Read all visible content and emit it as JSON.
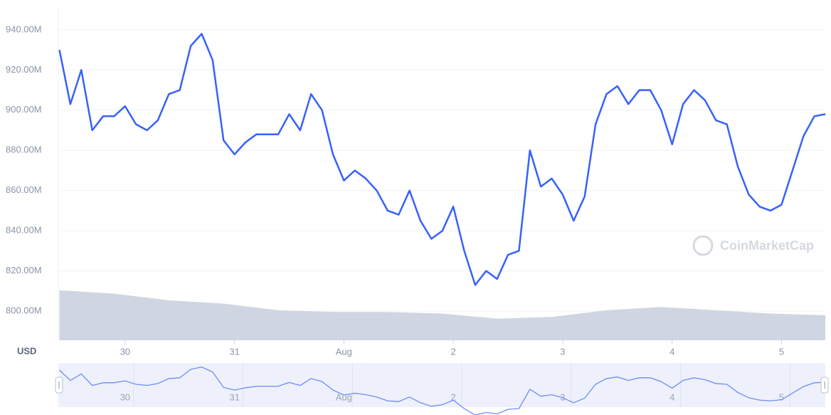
{
  "chart_data": {
    "type": "line",
    "x": [
      -0.6,
      -0.5,
      -0.4,
      -0.3,
      -0.2,
      -0.1,
      0,
      0.1,
      0.2,
      0.3,
      0.4,
      0.5,
      0.6,
      0.7,
      0.8,
      0.9,
      1,
      1.1,
      1.2,
      1.3,
      1.4,
      1.5,
      1.6,
      1.7,
      1.8,
      1.9,
      2,
      2.1,
      2.2,
      2.3,
      2.4,
      2.5,
      2.6,
      2.7,
      2.8,
      2.9,
      3,
      3.1,
      3.2,
      3.3,
      3.4,
      3.5,
      3.6,
      3.7,
      3.8,
      3.9,
      4,
      4.1,
      4.2,
      4.3,
      4.4,
      4.5,
      4.6,
      4.7,
      4.8,
      4.9,
      5,
      5.1,
      5.2,
      5.3,
      5.4,
      5.5,
      5.6,
      5.7,
      5.8,
      5.9,
      6,
      6.1,
      6.2,
      6.3,
      6.4
    ],
    "values": [
      930,
      903,
      920,
      890,
      897,
      897,
      902,
      893,
      890,
      895,
      908,
      910,
      932,
      938,
      925,
      885,
      878,
      884,
      888,
      888,
      888,
      898,
      890,
      908,
      900,
      878,
      865,
      870,
      866,
      860,
      850,
      848,
      860,
      845,
      836,
      840,
      852,
      830,
      813,
      820,
      816,
      828,
      830,
      880,
      862,
      866,
      858,
      845,
      857,
      893,
      908,
      912,
      903,
      910,
      910,
      900,
      883,
      903,
      910,
      905,
      895,
      893,
      872,
      858,
      852,
      850,
      853,
      870,
      887,
      897,
      898
    ],
    "color": "#3861fb",
    "volume": {
      "x": [
        -0.6,
        -0.1,
        0.4,
        0.9,
        1.4,
        1.9,
        2.4,
        2.9,
        3.4,
        3.9,
        4.4,
        4.9,
        5.4,
        5.9,
        6.4
      ],
      "values": [
        15,
        14,
        12,
        11,
        9,
        8.5,
        8.5,
        8,
        6.5,
        7,
        9,
        10,
        9,
        8,
        7.5
      ],
      "color": "#cfd5e1"
    },
    "y2lim": [
      0,
      100
    ],
    "xlim": [
      -0.61,
      6.4
    ],
    "xticks": [
      {
        "value": 0,
        "label": "30"
      },
      {
        "value": 1,
        "label": "31"
      },
      {
        "value": 2,
        "label": "Aug"
      },
      {
        "value": 3,
        "label": "2"
      },
      {
        "value": 4,
        "label": "3"
      },
      {
        "value": 5,
        "label": "4"
      },
      {
        "value": 6,
        "label": "5"
      }
    ],
    "ylim": [
      785.5,
      951.3
    ],
    "yticks": [
      {
        "value": 800,
        "label": "800.00M"
      },
      {
        "value": 820,
        "label": "820.00M"
      },
      {
        "value": 840,
        "label": "840.00M"
      },
      {
        "value": 860,
        "label": "860.00M"
      },
      {
        "value": 880,
        "label": "880.00M"
      },
      {
        "value": 900,
        "label": "900.00M"
      },
      {
        "value": 920,
        "label": "920.00M"
      },
      {
        "value": 940,
        "label": "940.00M"
      }
    ],
    "currency_label": "USD",
    "watermark": "CoinMarketCap",
    "grid": true
  }
}
